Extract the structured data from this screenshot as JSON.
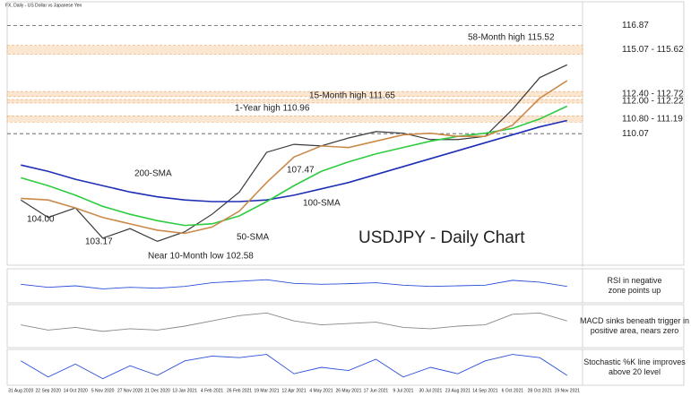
{
  "chart_data": [
    {
      "type": "line",
      "subtitle": "FX, Daily - US Dollar vs Japanese Yen",
      "title": "USDJPY - Daily Chart",
      "categories": [
        "31 Aug 2020",
        "22 Sep 2020",
        "14 Oct 2020",
        "5 Nov 2020",
        "27 Nov 2020",
        "21 Dec 2020",
        "13 Jan 2021",
        "4 Feb 2021",
        "26 Feb 2021",
        "19 Mar 2021",
        "12 Apr 2021",
        "4 May 2021",
        "26 May 2021",
        "17 Jun 2021",
        "9 Jul 2021",
        "30 Jul 2021",
        "23 Aug 2021",
        "14 Sep 2021",
        "6 Oct 2021",
        "28 Oct 2021",
        "19 Nov 2021"
      ],
      "ylim": [
        101.8,
        117.8
      ],
      "series": [
        {
          "color": "#3a3a3a",
          "values": [
            105.9,
            104.8,
            105.4,
            103.5,
            104.1,
            103.3,
            103.9,
            105.0,
            106.4,
            108.9,
            109.4,
            109.3,
            109.8,
            110.2,
            110.1,
            109.7,
            109.7,
            109.9,
            111.6,
            113.6,
            114.4
          ]
        },
        {
          "name": "200-SMA",
          "color": "#1f2fb5",
          "values": [
            108.1,
            107.7,
            107.2,
            106.8,
            106.4,
            106.1,
            105.9,
            105.8,
            105.8,
            105.9,
            106.2,
            106.6,
            107.0,
            107.5,
            108.0,
            108.5,
            109.0,
            109.5,
            110.0,
            110.5,
            110.9
          ]
        },
        {
          "name": "100-SMA",
          "color": "#2ecc40",
          "values": [
            107.3,
            106.8,
            106.2,
            105.5,
            105.0,
            104.6,
            104.3,
            104.4,
            104.9,
            105.8,
            106.8,
            107.7,
            108.3,
            108.8,
            109.2,
            109.6,
            109.9,
            110.1,
            110.4,
            111.0,
            111.8
          ]
        },
        {
          "name": "50-SMA",
          "color": "#c98a4b",
          "values": [
            106.0,
            105.9,
            105.4,
            104.8,
            104.4,
            104.0,
            103.8,
            104.2,
            105.2,
            107.0,
            108.6,
            109.3,
            109.2,
            109.6,
            110.0,
            110.1,
            109.9,
            109.9,
            110.6,
            112.3,
            113.4
          ]
        }
      ],
      "levels": [
        {
          "value": 116.87,
          "label": "116.87",
          "color": "#2b4fd8"
        },
        {
          "low": 115.07,
          "high": 115.62,
          "label": "115.07 - 115.62",
          "color": "#2b4fd8"
        },
        {
          "low": 112.4,
          "high": 112.72,
          "label": "112.40 - 112.72",
          "color": "#e0301e"
        },
        {
          "low": 112.0,
          "high": 112.22,
          "label": "112.00 - 112.22",
          "color": "#e0301e"
        },
        {
          "low": 110.8,
          "high": 111.19,
          "label": "110.80 - 111.19",
          "color": "#e0301e"
        },
        {
          "value": 110.07,
          "label": "110.07",
          "color": "#e0301e"
        }
      ],
      "annotations": [
        "58-Month high 115.52",
        "15-Month high 111.65",
        "1-Year high 110.96",
        "107.47",
        "104.00",
        "103.17",
        "Near 10-Month low 102.58"
      ]
    },
    {
      "type": "line",
      "ylim": [
        0,
        100
      ],
      "series": [
        {
          "color": "#2b4fd8",
          "values": [
            55,
            45,
            50,
            40,
            45,
            42,
            48,
            60,
            65,
            70,
            58,
            55,
            57,
            60,
            52,
            48,
            50,
            52,
            68,
            62,
            48
          ]
        }
      ],
      "note": "RSI in negative zone points up"
    },
    {
      "type": "line",
      "ylim": [
        -1.5,
        1.5
      ],
      "series": [
        {
          "color": "#888888",
          "values": [
            0.1,
            -0.3,
            -0.1,
            -0.4,
            -0.2,
            -0.3,
            0.0,
            0.4,
            0.8,
            1.0,
            0.4,
            0.1,
            0.2,
            0.3,
            -0.1,
            -0.2,
            0.0,
            0.1,
            0.9,
            1.0,
            0.4
          ]
        }
      ],
      "note": "MACD sinks beneath trigger in positive area, nears zero"
    },
    {
      "type": "line",
      "ylim": [
        0,
        100
      ],
      "series": [
        {
          "color": "#2b4fd8",
          "values": [
            70,
            20,
            60,
            15,
            55,
            25,
            70,
            85,
            80,
            90,
            30,
            50,
            40,
            75,
            20,
            50,
            30,
            70,
            90,
            80,
            25
          ]
        }
      ],
      "note": "Stochastic %K line improves above 20 level"
    }
  ]
}
